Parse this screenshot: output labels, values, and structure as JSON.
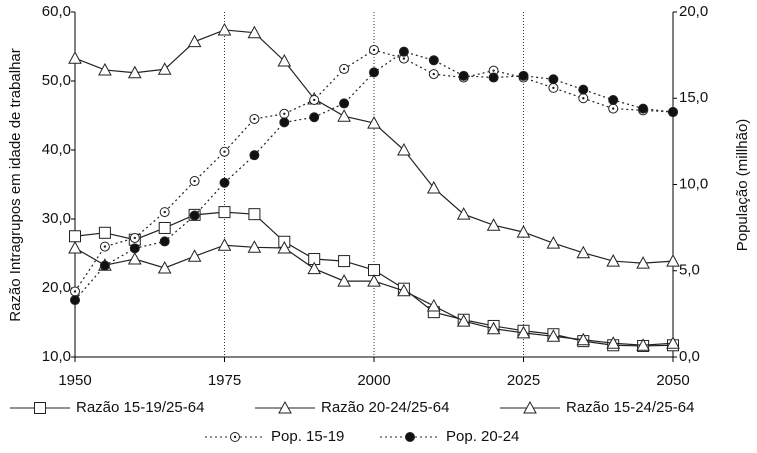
{
  "chart_data": {
    "type": "line",
    "y_label": "Razão Intragrupos em idade de trabalhar",
    "y2_label": "População (millhão)",
    "x": [
      1950,
      1955,
      1960,
      1965,
      1970,
      1975,
      1980,
      1985,
      1990,
      1995,
      2000,
      2005,
      2010,
      2015,
      2020,
      2025,
      2030,
      2035,
      2040,
      2045,
      2050
    ],
    "xlim": [
      1950,
      2050
    ],
    "xticks": [
      1950,
      1975,
      2000,
      2025,
      2050
    ],
    "ylim": [
      10,
      60
    ],
    "yticks": [
      {
        "value": 10,
        "label": "10,0"
      },
      {
        "value": 20,
        "label": "20,0"
      },
      {
        "value": 30,
        "label": "30,0"
      },
      {
        "value": 40,
        "label": "40,0"
      },
      {
        "value": 50,
        "label": "50,0"
      },
      {
        "value": 60,
        "label": "60,0"
      }
    ],
    "y2lim": [
      0,
      20
    ],
    "y2ticks": [
      {
        "value": 0,
        "label": "0,0"
      },
      {
        "value": 5,
        "label": "5,0"
      },
      {
        "value": 10,
        "label": "10,0"
      },
      {
        "value": 15,
        "label": "15,0"
      },
      {
        "value": 20,
        "label": "20,0"
      }
    ],
    "grid": "x",
    "series": [
      {
        "name": "Razão 15-19/25-64",
        "color": "#222222",
        "marker": "square",
        "dashed": false,
        "values": [
          27.5,
          28.0,
          27.0,
          28.7,
          30.6,
          31.0,
          30.7,
          26.7,
          24.2,
          23.9,
          22.6,
          19.9,
          16.5,
          15.4,
          14.5,
          13.8,
          13.3,
          12.3,
          11.7,
          11.6,
          11.7
        ]
      },
      {
        "name": "Razão 20-24/25-64",
        "color": "#222222",
        "marker": "triangle",
        "dashed": false,
        "values": [
          25.8,
          23.3,
          24.2,
          22.9,
          24.6,
          26.2,
          25.9,
          25.8,
          22.8,
          21.0,
          21.0,
          19.6,
          17.4,
          15.2,
          14.1,
          13.5,
          13.0,
          12.5,
          12.0,
          11.7,
          12.0
        ]
      },
      {
        "name": "Razão 15-24/25-64",
        "color": "#222222",
        "marker": "triangle",
        "dashed": false,
        "values": [
          53.3,
          51.6,
          51.2,
          51.7,
          55.7,
          57.4,
          57.0,
          52.9,
          47.4,
          44.9,
          43.9,
          40.0,
          34.5,
          30.7,
          29.1,
          28.1,
          26.5,
          25.1,
          23.9,
          23.6,
          23.9
        ]
      },
      {
        "name": "Pop. 15-19",
        "color": "#222222",
        "marker": "circle-open",
        "dashed": true,
        "axis": "y2",
        "values": [
          3.8,
          6.4,
          6.9,
          8.4,
          10.2,
          11.9,
          13.8,
          14.1,
          14.9,
          16.7,
          17.8,
          17.3,
          16.4,
          16.2,
          16.6,
          16.2,
          15.6,
          15.0,
          14.4,
          14.3,
          14.2
        ]
      },
      {
        "name": "Pop. 20-24",
        "color": "#222222",
        "marker": "circle-filled",
        "dashed": true,
        "axis": "y2",
        "values": [
          3.3,
          5.3,
          6.3,
          6.7,
          8.2,
          10.1,
          11.7,
          13.6,
          13.9,
          14.7,
          16.5,
          17.7,
          17.2,
          16.3,
          16.2,
          16.3,
          16.1,
          15.5,
          14.9,
          14.4,
          14.2
        ]
      }
    ]
  }
}
